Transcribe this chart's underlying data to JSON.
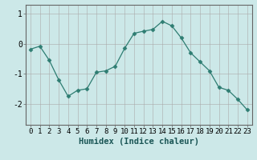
{
  "x": [
    0,
    1,
    2,
    3,
    4,
    5,
    6,
    7,
    8,
    9,
    10,
    11,
    12,
    13,
    14,
    15,
    16,
    17,
    18,
    19,
    20,
    21,
    22,
    23
  ],
  "y": [
    -0.18,
    -0.08,
    -0.55,
    -1.2,
    -1.75,
    -1.55,
    -1.5,
    -0.95,
    -0.9,
    -0.75,
    -0.15,
    0.35,
    0.42,
    0.48,
    0.75,
    0.6,
    0.2,
    -0.3,
    -0.6,
    -0.9,
    -1.45,
    -1.55,
    -1.85,
    -2.2
  ],
  "line_color": "#2e7d72",
  "marker": "D",
  "marker_size": 2.5,
  "bg_color": "#cce8e8",
  "grid_color": "#aaaaaa",
  "xlabel": "Humidex (Indice chaleur)",
  "xlabel_fontsize": 7.5,
  "ylabel_ticks": [
    -2,
    -1,
    0,
    1
  ],
  "ylim": [
    -2.7,
    1.3
  ],
  "xlim": [
    -0.5,
    23.5
  ],
  "xtick_labels": [
    "0",
    "1",
    "2",
    "3",
    "4",
    "5",
    "6",
    "7",
    "8",
    "9",
    "10",
    "11",
    "12",
    "13",
    "14",
    "15",
    "16",
    "17",
    "18",
    "19",
    "20",
    "21",
    "22",
    "23"
  ],
  "tick_fontsize": 6.5
}
